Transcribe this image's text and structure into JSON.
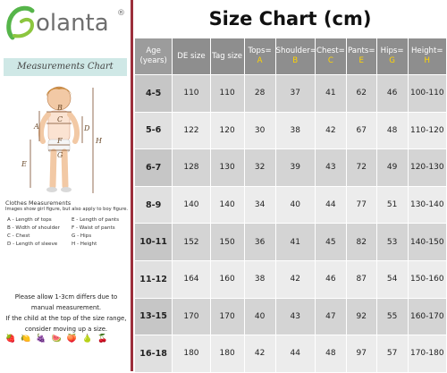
{
  "brand": {
    "logo_text": "olanta",
    "registered": "®",
    "logo_color": "#56b54a"
  },
  "left_panel": {
    "measurements_title": "Measurements Chart",
    "figure_letters": [
      "A",
      "B",
      "C",
      "D",
      "E",
      "F",
      "G",
      "H"
    ],
    "clothes_title": "Clothes Measurements",
    "clothes_note": "Images show girl figure, but also apply to boy figure.",
    "legend": [
      {
        "left": "A - Length of tops",
        "right": "E - Length of pants"
      },
      {
        "left": "B - Width of shoulder",
        "right": "F - Waist of pants"
      },
      {
        "left": "C - Chest",
        "right": "G - Hips"
      },
      {
        "left": "D - Length of sleeve",
        "right": "H - Height"
      }
    ],
    "allow_note": "Please allow 1-3cm differs due to manual measurement.",
    "range_note": "If the child at the top of the size range, consider moving up a size."
  },
  "chart": {
    "title": "Size Chart (cm)",
    "header_bg": "#8e8e8e",
    "letter_color": "#ffd400",
    "columns": [
      {
        "label": "Age (years)",
        "letter": ""
      },
      {
        "label": "DE size",
        "letter": ""
      },
      {
        "label": "Tag size",
        "letter": ""
      },
      {
        "label": "Tops=",
        "letter": "A"
      },
      {
        "label": "Shoulder=",
        "letter": "B"
      },
      {
        "label": "Chest=",
        "letter": "C"
      },
      {
        "label": "Pants=",
        "letter": "E"
      },
      {
        "label": "Hips=",
        "letter": "G"
      },
      {
        "label": "Height=",
        "letter": "H"
      }
    ],
    "rows": [
      [
        "4-5",
        "110",
        "110",
        "28",
        "37",
        "41",
        "62",
        "46",
        "100-110"
      ],
      [
        "5-6",
        "122",
        "120",
        "30",
        "38",
        "42",
        "67",
        "48",
        "110-120"
      ],
      [
        "6-7",
        "128",
        "130",
        "32",
        "39",
        "43",
        "72",
        "49",
        "120-130"
      ],
      [
        "8-9",
        "140",
        "140",
        "34",
        "40",
        "44",
        "77",
        "51",
        "130-140"
      ],
      [
        "10-11",
        "152",
        "150",
        "36",
        "41",
        "45",
        "82",
        "53",
        "140-150"
      ],
      [
        "11-12",
        "164",
        "160",
        "38",
        "42",
        "46",
        "87",
        "54",
        "150-160"
      ],
      [
        "13-15",
        "170",
        "170",
        "40",
        "43",
        "47",
        "92",
        "55",
        "160-170"
      ],
      [
        "16-18",
        "180",
        "180",
        "42",
        "44",
        "48",
        "97",
        "57",
        "170-180"
      ]
    ]
  }
}
